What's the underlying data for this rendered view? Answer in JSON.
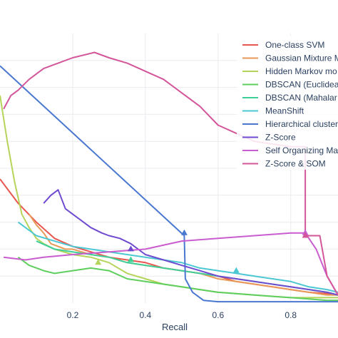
{
  "chart_data": {
    "type": "line",
    "xlabel": "Recall",
    "ylabel": "",
    "xlim": [
      0,
      0.93
    ],
    "ylim": [
      0,
      1
    ],
    "x_ticks": [
      0.2,
      0.4,
      0.6,
      0.8
    ],
    "x_tick_labels": [
      "0.2",
      "0.4",
      "0.6",
      "0.8"
    ],
    "grid": true,
    "legend_position": "top-right",
    "series": [
      {
        "name": "One-class SVM",
        "color": "#e8574f",
        "x": [
          0,
          0.05,
          0.1,
          0.15,
          0.2,
          0.25,
          0.3,
          0.35,
          0.4,
          0.45,
          0.5,
          0.55,
          0.6,
          0.65,
          0.7,
          0.75,
          0.8,
          0.85,
          0.9,
          0.93
        ],
        "y": [
          0.46,
          0.37,
          0.3,
          0.24,
          0.21,
          0.19,
          0.17,
          0.16,
          0.15,
          0.13,
          0.12,
          0.11,
          0.1,
          0.08,
          0.07,
          0.06,
          0.05,
          0.04,
          0.035,
          0.03
        ]
      },
      {
        "name": "Gaussian Mixture M",
        "color": "#e89a5a",
        "x": [
          0.08,
          0.1,
          0.12,
          0.14,
          0.16,
          0.18,
          0.2,
          0.25,
          0.3,
          0.35,
          0.4,
          0.45,
          0.5,
          0.55,
          0.6,
          0.65,
          0.7,
          0.75,
          0.8,
          0.85,
          0.9,
          0.93
        ],
        "y": [
          0.33,
          0.29,
          0.26,
          0.22,
          0.21,
          0.2,
          0.2,
          0.18,
          0.17,
          0.15,
          0.14,
          0.13,
          0.12,
          0.11,
          0.09,
          0.08,
          0.07,
          0.06,
          0.05,
          0.04,
          0.03,
          0.03
        ]
      },
      {
        "name": "Hidden Markov mo",
        "color": "#b5d45a",
        "x": [
          0,
          0.02,
          0.04,
          0.06,
          0.08,
          0.1,
          0.12,
          0.15,
          0.2,
          0.25,
          0.3,
          0.35,
          0.4,
          0.45,
          0.5,
          0.55,
          0.6,
          0.7,
          0.8,
          0.9,
          0.93
        ],
        "y": [
          0.77,
          0.6,
          0.45,
          0.33,
          0.28,
          0.24,
          0.22,
          0.2,
          0.18,
          0.17,
          0.15,
          0.11,
          0.09,
          0.07,
          0.06,
          0.05,
          0.04,
          0.03,
          0.02,
          0.02,
          0.02
        ]
      },
      {
        "name": "DBSCAN (Euclidea",
        "color": "#5ecf5e",
        "x": [
          0.05,
          0.08,
          0.12,
          0.15,
          0.2,
          0.25,
          0.3,
          0.35,
          0.4,
          0.45,
          0.5,
          0.55,
          0.6,
          0.65,
          0.7,
          0.75,
          0.8,
          0.85,
          0.9,
          0.93
        ],
        "y": [
          0.17,
          0.14,
          0.12,
          0.11,
          0.12,
          0.13,
          0.12,
          0.09,
          0.08,
          0.07,
          0.06,
          0.05,
          0.04,
          0.035,
          0.03,
          0.025,
          0.02,
          0.015,
          0.01,
          0.01
        ]
      },
      {
        "name": "DBSCAN (Mahalar",
        "color": "#3fd09a",
        "x": [
          0.1,
          0.15,
          0.2,
          0.25,
          0.3,
          0.35,
          0.4,
          0.45,
          0.5,
          0.55,
          0.6,
          0.65,
          0.7,
          0.75,
          0.8,
          0.85,
          0.9,
          0.93
        ],
        "y": [
          0.23,
          0.2,
          0.19,
          0.18,
          0.17,
          0.15,
          0.14,
          0.13,
          0.12,
          0.11,
          0.1,
          0.09,
          0.08,
          0.07,
          0.06,
          0.05,
          0.04,
          0.03
        ]
      },
      {
        "name": "MeanShift",
        "color": "#4cc8d3",
        "x": [
          0.05,
          0.1,
          0.15,
          0.2,
          0.25,
          0.3,
          0.35,
          0.4,
          0.45,
          0.5,
          0.55,
          0.6,
          0.65,
          0.7,
          0.75,
          0.8,
          0.85,
          0.9,
          0.93
        ],
        "y": [
          0.3,
          0.25,
          0.23,
          0.21,
          0.2,
          0.19,
          0.18,
          0.17,
          0.16,
          0.15,
          0.13,
          0.12,
          0.11,
          0.1,
          0.09,
          0.08,
          0.06,
          0.05,
          0.04
        ]
      },
      {
        "name": "Hierarchical cluster",
        "color": "#4a78d0",
        "x": [
          0,
          0.507,
          0.51,
          0.53,
          0.56,
          0.6,
          0.7,
          0.8,
          0.9,
          0.93
        ],
        "y": [
          0.88,
          0.25,
          0.09,
          0.04,
          0.01,
          0.005,
          0.005,
          0.005,
          0.005,
          0.005
        ]
      },
      {
        "name": "Z-Score",
        "color": "#6f4bd0",
        "x": [
          0.12,
          0.14,
          0.16,
          0.18,
          0.2,
          0.22,
          0.25,
          0.28,
          0.3,
          0.33,
          0.36,
          0.38,
          0.4,
          0.45,
          0.5,
          0.55,
          0.6,
          0.7,
          0.8,
          0.9,
          0.93
        ],
        "y": [
          0.37,
          0.4,
          0.42,
          0.35,
          0.33,
          0.31,
          0.28,
          0.26,
          0.25,
          0.24,
          0.22,
          0.2,
          0.18,
          0.16,
          0.14,
          0.12,
          0.1,
          0.08,
          0.06,
          0.04,
          0.03
        ]
      },
      {
        "name": "Self Organizing Ma",
        "color": "#c95dd0",
        "x": [
          0.01,
          0.07,
          0.12,
          0.2,
          0.3,
          0.4,
          0.5,
          0.6,
          0.7,
          0.8,
          0.84,
          0.85,
          0.87,
          0.9,
          0.93
        ],
        "y": [
          0.17,
          0.16,
          0.17,
          0.18,
          0.19,
          0.2,
          0.23,
          0.24,
          0.25,
          0.26,
          0.26,
          0.24,
          0.2,
          0.1,
          0.03
        ]
      },
      {
        "name": "Z-Score & SOM",
        "color": "#d4569a",
        "x": [
          0.01,
          0.03,
          0.05,
          0.08,
          0.12,
          0.16,
          0.2,
          0.26,
          0.3,
          0.35,
          0.4,
          0.45,
          0.5,
          0.55,
          0.6,
          0.65,
          0.7,
          0.75,
          0.8,
          0.84,
          0.84,
          0.88,
          0.9,
          0.93
        ],
        "y": [
          0.72,
          0.77,
          0.79,
          0.83,
          0.87,
          0.89,
          0.91,
          0.93,
          0.91,
          0.89,
          0.86,
          0.83,
          0.78,
          0.73,
          0.66,
          0.63,
          0.6,
          0.59,
          0.58,
          0.58,
          0.25,
          0.25,
          0.1,
          0.03
        ]
      }
    ],
    "markers": [
      {
        "series": "Hierarchical cluster",
        "x": 0.507,
        "y": 0.26
      },
      {
        "series": "Self Organizing Ma",
        "x": 0.84,
        "y": 0.26
      },
      {
        "series": "Z-Score & SOM",
        "x": 0.84,
        "y": 0.25
      },
      {
        "series": "Hidden Markov mo",
        "x": 0.27,
        "y": 0.15
      },
      {
        "series": "DBSCAN (Mahalar",
        "x": 0.36,
        "y": 0.16
      },
      {
        "series": "MeanShift",
        "x": 0.65,
        "y": 0.12
      },
      {
        "series": "Z-Score",
        "x": 0.36,
        "y": 0.2
      }
    ]
  }
}
